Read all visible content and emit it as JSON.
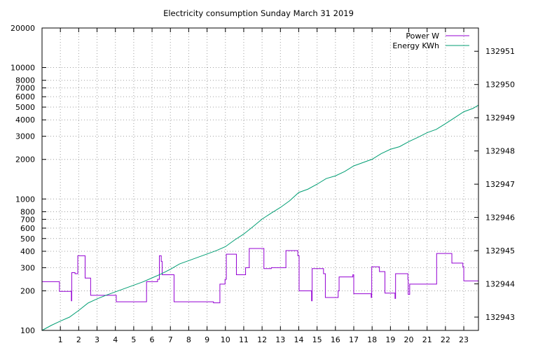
{
  "chart_data": {
    "type": "line",
    "title": "Electricity consumption Sunday March 31 2019",
    "x_ticks": [
      1,
      2,
      3,
      4,
      5,
      6,
      7,
      8,
      9,
      10,
      11,
      12,
      13,
      14,
      15,
      16,
      17,
      18,
      19,
      20,
      21,
      22,
      23
    ],
    "xlim": [
      0,
      23.8
    ],
    "y_scale": "log",
    "ylim": [
      100,
      20000
    ],
    "y_ticks": [
      100,
      200,
      300,
      400,
      500,
      600,
      700,
      800,
      1000,
      2000,
      3000,
      4000,
      5000,
      6000,
      7000,
      8000,
      10000,
      20000
    ],
    "y2_ticks": [
      132943,
      132944,
      132945,
      132946,
      132947,
      132948,
      132949,
      132950,
      132951
    ],
    "y2lim": [
      132942.6,
      132951.7
    ],
    "grid": true,
    "legend_position": "top-right",
    "colors": {
      "power": "#9400d3",
      "energy": "#009e73"
    },
    "series": [
      {
        "name": "Power W",
        "axis": "y",
        "points": [
          [
            0,
            235
          ],
          [
            0.95,
            235
          ],
          [
            0.95,
            198
          ],
          [
            1.6,
            198
          ],
          [
            1.6,
            168
          ],
          [
            1.62,
            168
          ],
          [
            1.62,
            275
          ],
          [
            1.8,
            275
          ],
          [
            1.8,
            270
          ],
          [
            1.95,
            270
          ],
          [
            1.95,
            370
          ],
          [
            2.35,
            370
          ],
          [
            2.35,
            250
          ],
          [
            2.65,
            250
          ],
          [
            2.65,
            185
          ],
          [
            4.05,
            185
          ],
          [
            4.05,
            165
          ],
          [
            5.65,
            165
          ],
          [
            5.65,
            165
          ],
          [
            5.7,
            165
          ],
          [
            5.7,
            235
          ],
          [
            6.3,
            235
          ],
          [
            6.3,
            245
          ],
          [
            6.4,
            245
          ],
          [
            6.4,
            370
          ],
          [
            6.5,
            370
          ],
          [
            6.5,
            335
          ],
          [
            6.55,
            335
          ],
          [
            6.55,
            265
          ],
          [
            7.2,
            265
          ],
          [
            7.2,
            165
          ],
          [
            9.35,
            165
          ],
          [
            9.35,
            162
          ],
          [
            9.7,
            162
          ],
          [
            9.7,
            225
          ],
          [
            9.98,
            225
          ],
          [
            9.98,
            245
          ],
          [
            10.05,
            245
          ],
          [
            10.05,
            380
          ],
          [
            10.6,
            380
          ],
          [
            10.6,
            265
          ],
          [
            11.1,
            265
          ],
          [
            11.1,
            300
          ],
          [
            11.3,
            300
          ],
          [
            11.3,
            420
          ],
          [
            12.1,
            420
          ],
          [
            12.1,
            295
          ],
          [
            12.5,
            295
          ],
          [
            12.5,
            300
          ],
          [
            13.25,
            300
          ],
          [
            13.25,
            300
          ],
          [
            13.3,
            300
          ],
          [
            13.3,
            405
          ],
          [
            13.95,
            405
          ],
          [
            13.95,
            370
          ],
          [
            14.02,
            370
          ],
          [
            14.02,
            200
          ],
          [
            14.7,
            200
          ],
          [
            14.7,
            168
          ],
          [
            14.73,
            168
          ],
          [
            14.73,
            295
          ],
          [
            15.35,
            295
          ],
          [
            15.35,
            270
          ],
          [
            15.45,
            270
          ],
          [
            15.45,
            178
          ],
          [
            16.15,
            178
          ],
          [
            16.15,
            200
          ],
          [
            16.2,
            200
          ],
          [
            16.2,
            255
          ],
          [
            16.95,
            255
          ],
          [
            16.95,
            265
          ],
          [
            17.0,
            265
          ],
          [
            17.0,
            190
          ],
          [
            17.95,
            190
          ],
          [
            17.95,
            178
          ],
          [
            17.98,
            178
          ],
          [
            17.98,
            305
          ],
          [
            18.4,
            305
          ],
          [
            18.4,
            280
          ],
          [
            18.7,
            280
          ],
          [
            18.7,
            192
          ],
          [
            19.25,
            192
          ],
          [
            19.25,
            175
          ],
          [
            19.28,
            175
          ],
          [
            19.28,
            270
          ],
          [
            19.95,
            270
          ],
          [
            19.95,
            245
          ],
          [
            19.97,
            245
          ],
          [
            19.97,
            188
          ],
          [
            20.05,
            188
          ],
          [
            20.05,
            225
          ],
          [
            21.52,
            225
          ],
          [
            21.52,
            385
          ],
          [
            22.35,
            385
          ],
          [
            22.35,
            325
          ],
          [
            22.95,
            325
          ],
          [
            22.95,
            305
          ],
          [
            23.0,
            305
          ],
          [
            23.0,
            238
          ],
          [
            23.8,
            238
          ]
        ]
      },
      {
        "name": "Energy KWh",
        "axis": "y2",
        "points": [
          [
            0,
            132942.6
          ],
          [
            0.5,
            132942.75
          ],
          [
            1,
            132942.88
          ],
          [
            1.5,
            132943.0
          ],
          [
            2,
            132943.2
          ],
          [
            2.5,
            132943.42
          ],
          [
            3,
            132943.55
          ],
          [
            3.5,
            132943.66
          ],
          [
            4,
            132943.76
          ],
          [
            4.5,
            132943.86
          ],
          [
            5,
            132943.96
          ],
          [
            5.5,
            132944.06
          ],
          [
            6,
            132944.18
          ],
          [
            6.5,
            132944.3
          ],
          [
            7,
            132944.44
          ],
          [
            7.5,
            132944.6
          ],
          [
            8,
            132944.7
          ],
          [
            8.5,
            132944.8
          ],
          [
            9,
            132944.9
          ],
          [
            9.5,
            132945.0
          ],
          [
            10,
            132945.12
          ],
          [
            10.5,
            132945.32
          ],
          [
            11,
            132945.5
          ],
          [
            11.5,
            132945.72
          ],
          [
            12,
            132945.95
          ],
          [
            12.5,
            132946.13
          ],
          [
            13,
            132946.3
          ],
          [
            13.5,
            132946.5
          ],
          [
            14,
            132946.75
          ],
          [
            14.5,
            132946.85
          ],
          [
            15,
            132947.0
          ],
          [
            15.5,
            132947.17
          ],
          [
            16,
            132947.25
          ],
          [
            16.5,
            132947.38
          ],
          [
            17,
            132947.55
          ],
          [
            17.5,
            132947.65
          ],
          [
            18,
            132947.75
          ],
          [
            18.5,
            132947.92
          ],
          [
            19,
            132948.05
          ],
          [
            19.5,
            132948.13
          ],
          [
            20,
            132948.28
          ],
          [
            20.5,
            132948.41
          ],
          [
            21,
            132948.55
          ],
          [
            21.5,
            132948.65
          ],
          [
            22,
            132948.82
          ],
          [
            22.5,
            132949.0
          ],
          [
            23,
            132949.18
          ],
          [
            23.5,
            132949.28
          ],
          [
            23.8,
            132949.38
          ]
        ]
      }
    ]
  }
}
